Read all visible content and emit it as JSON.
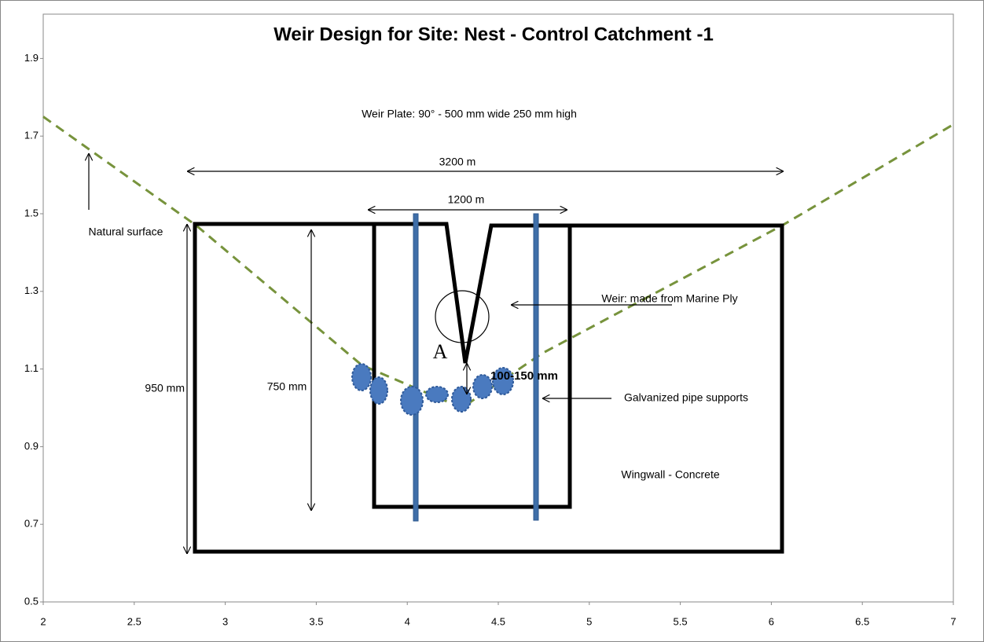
{
  "chart_data": {
    "type": "line",
    "title": "Weir Design for Site: Nest - Control Catchment -1",
    "annotations": {
      "weir_plate": "Weir Plate: 90° - 500 mm wide 250 mm high",
      "outer_width": "3200 m",
      "inner_width": "1200 m",
      "natural_surface": "Natural surface",
      "outer_height": "950 mm",
      "inner_height": "750 mm",
      "weir": "Weir: made from Marine Ply",
      "detail": "A",
      "gap": "100-150 mm",
      "pipes": "Galvanized pipe supports",
      "wingwall": "Wingwall - Concrete"
    },
    "x": [
      2,
      2.84,
      3.75,
      4.3,
      4.74,
      6.06,
      7
    ],
    "series": [
      {
        "name": "Natural surface",
        "color": "#77933c",
        "values": [
          1.75,
          1.47,
          1.11,
          1.0,
          1.14,
          1.47,
          1.73
        ]
      }
    ],
    "xlim": [
      2,
      7
    ],
    "ylim": [
      0.5,
      2.0
    ],
    "xticks": [
      2,
      2.5,
      3,
      3.5,
      4,
      4.5,
      5,
      5.5,
      6,
      6.5,
      7
    ],
    "yticks": [
      0.5,
      0.7,
      0.9,
      1.1,
      1.3,
      1.5,
      1.7,
      1.9
    ],
    "dashed": true
  }
}
